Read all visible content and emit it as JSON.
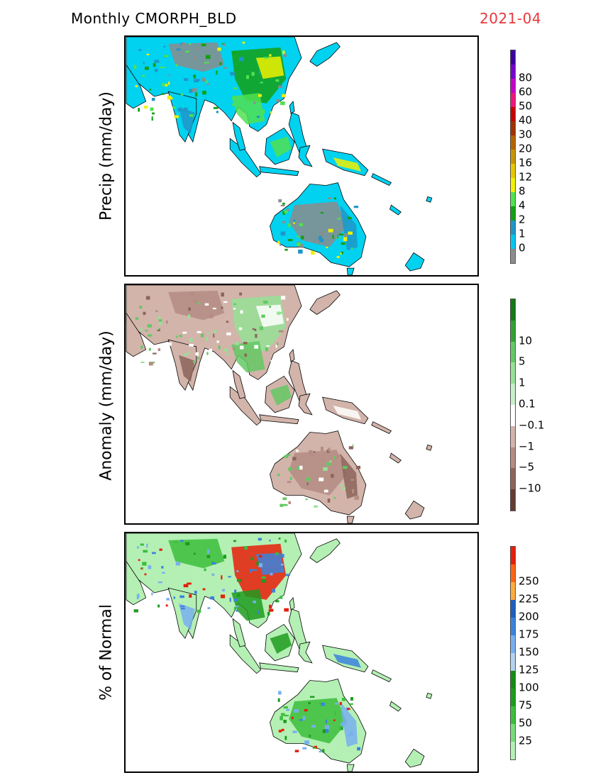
{
  "header": {
    "title": "Monthly CMORPH_BLD",
    "date": "2021-04",
    "date_color": "#e8383d"
  },
  "panels": [
    {
      "ylabel": "Precip (mm/day)",
      "colorbar": {
        "colors": [
          "#8c8c8c",
          "#00c8f0",
          "#1e96c8",
          "#14a014",
          "#50e150",
          "#f0f000",
          "#e6c800",
          "#c89600",
          "#b46400",
          "#a03200",
          "#c80000",
          "#f0147d",
          "#c800c8",
          "#7800d2",
          "#3c00a0"
        ],
        "ticks": [
          "0",
          "1",
          "2",
          "4",
          "8",
          "12",
          "16",
          "20",
          "30",
          "40",
          "50",
          "60",
          "80"
        ]
      },
      "palette": {
        "ocean": "#ffffff",
        "land_base": "#00d2f0",
        "regions": [
          "#8c8c8c",
          "#1e96c8",
          "#14a014",
          "#50e150",
          "#f0f000"
        ]
      }
    },
    {
      "ylabel": "Anomaly (mm/day)",
      "colorbar": {
        "colors": [
          "#643c32",
          "#8c645a",
          "#b48c82",
          "#d2b4aa",
          "#ffffff",
          "#c8f0c8",
          "#96e196",
          "#64c864",
          "#32a032",
          "#147814"
        ],
        "ticks": [
          "−10",
          "−5",
          "−1",
          "−0.1",
          "0.1",
          "1",
          "5",
          "10"
        ]
      },
      "palette": {
        "ocean": "#ffffff",
        "land_base": "#d2b4aa",
        "regions": [
          "#b48c82",
          "#8c645a",
          "#96e196",
          "#64c864",
          "#ffffff"
        ]
      }
    },
    {
      "ylabel": "% of Normal",
      "colorbar": {
        "colors": [
          "#b4f0b4",
          "#78dc78",
          "#3cbe3c",
          "#1e9b1e",
          "#148c14",
          "#b4d2f0",
          "#78aff0",
          "#3c82dc",
          "#1e5fbe",
          "#ffaa3c",
          "#ff6414",
          "#e61e0a"
        ],
        "ticks": [
          "25",
          "50",
          "75",
          "100",
          "125",
          "150",
          "175",
          "200",
          "225",
          "250"
        ]
      },
      "palette": {
        "ocean": "#ffffff",
        "land_base": "#b4f0b4",
        "regions": [
          "#3cbe3c",
          "#78aff0",
          "#e61e0a",
          "#1e9b1e",
          "#3c82dc"
        ]
      }
    }
  ]
}
